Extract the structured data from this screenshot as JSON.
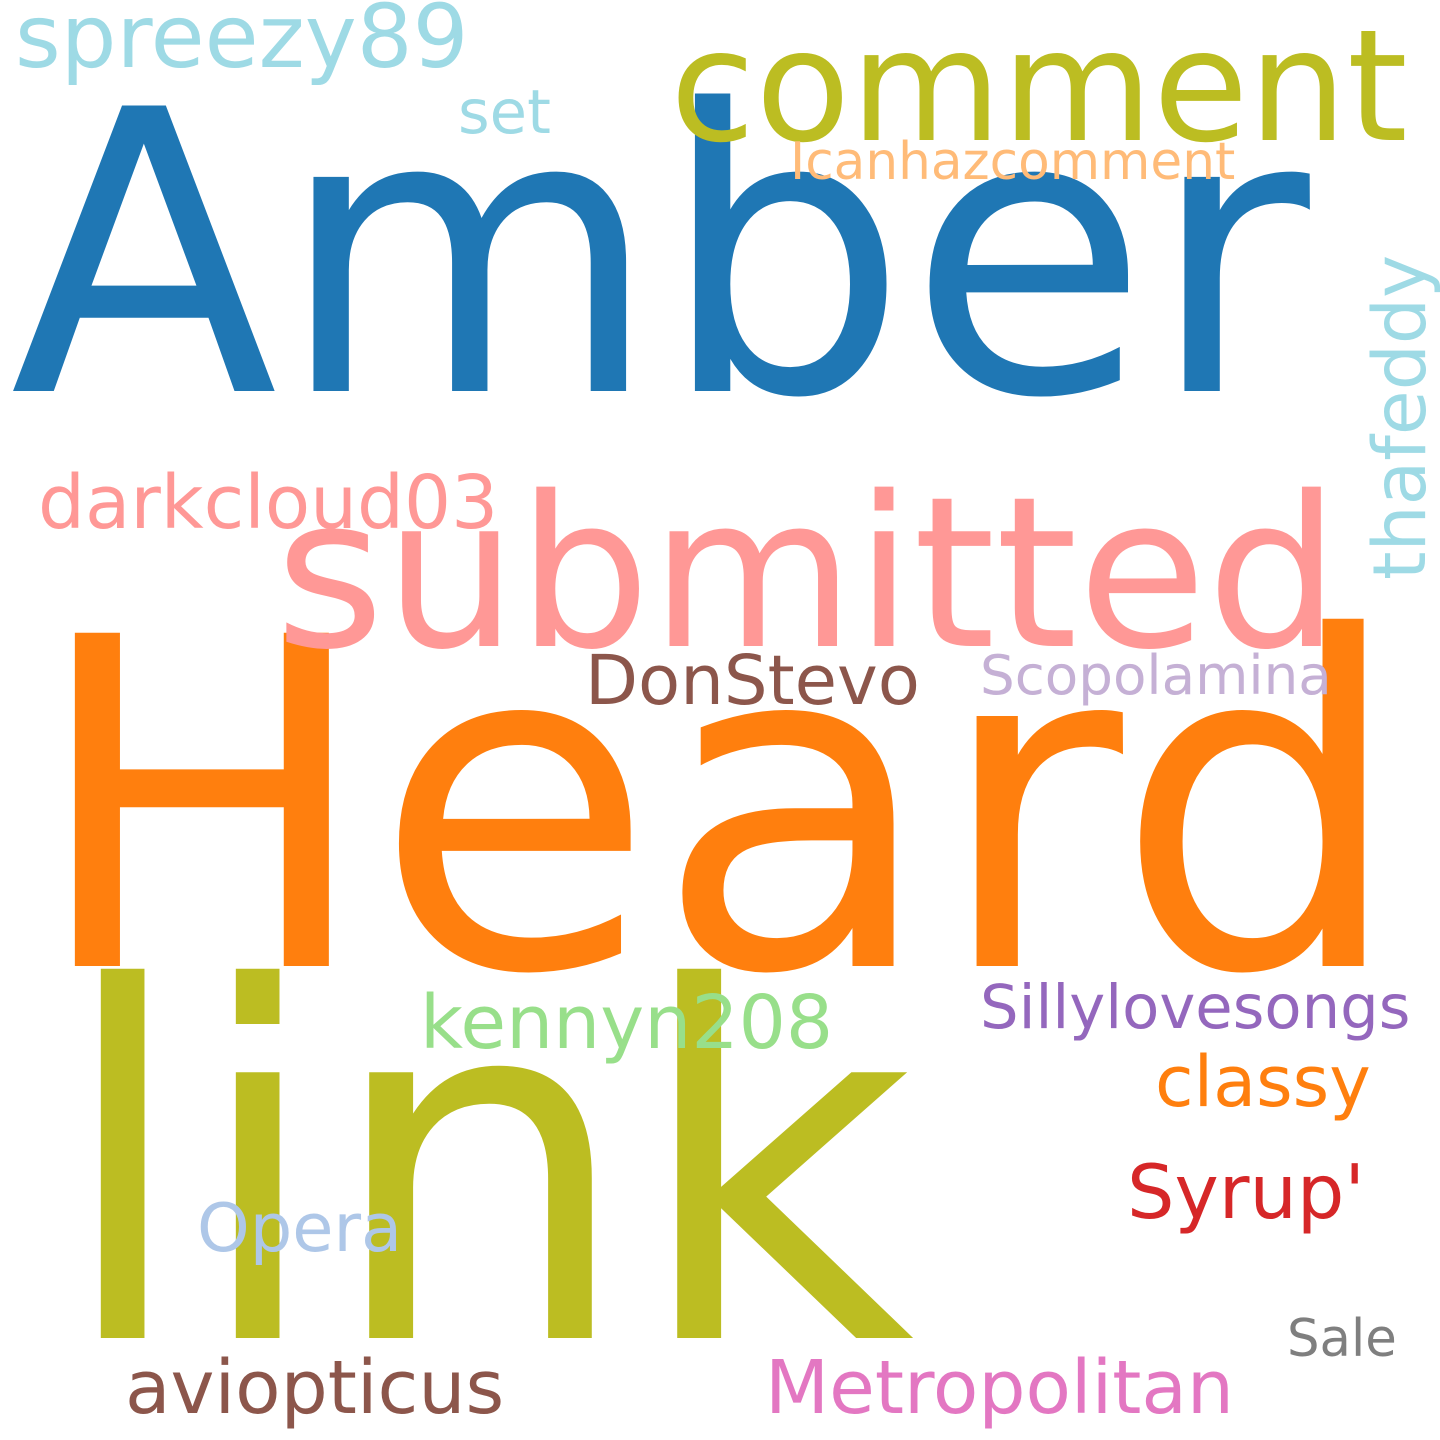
{
  "words": [
    {
      "text": "Amber",
      "color": "#1f77b4"
    },
    {
      "text": "Heard",
      "color": "#ff7f0e"
    },
    {
      "text": "link",
      "color": "#bcbd22"
    },
    {
      "text": "comment",
      "color": "#bcbd22"
    },
    {
      "text": "submitted",
      "color": "#ff9896"
    },
    {
      "text": "spreezy89",
      "color": "#9edae5"
    },
    {
      "text": "set",
      "color": "#9edae5"
    },
    {
      "text": "Icanhazcomment",
      "color": "#ffbb78"
    },
    {
      "text": "thafeddy",
      "color": "#9edae5"
    },
    {
      "text": "darkcloud03",
      "color": "#ff9896"
    },
    {
      "text": "DonStevo",
      "color": "#8c564b"
    },
    {
      "text": "Scopolamina",
      "color": "#c5b0d5"
    },
    {
      "text": "kennyn208",
      "color": "#98df8a"
    },
    {
      "text": "Sillylovesongs",
      "color": "#9467bd"
    },
    {
      "text": "classy",
      "color": "#ff7f0e"
    },
    {
      "text": "Syrup'",
      "color": "#d62728"
    },
    {
      "text": "Opera",
      "color": "#aec7e8"
    },
    {
      "text": "aviopticus",
      "color": "#8c564b"
    },
    {
      "text": "Metropolitan",
      "color": "#e377c2"
    },
    {
      "text": "Sale",
      "color": "#7f7f7f"
    }
  ]
}
